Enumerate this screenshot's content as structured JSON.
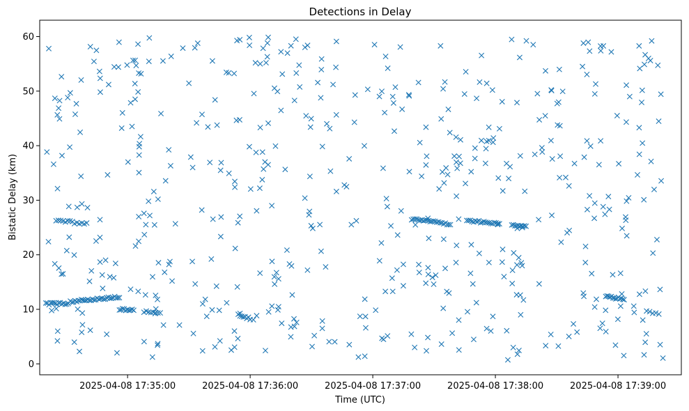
{
  "chart_data": {
    "type": "scatter",
    "title": "Detections in Delay",
    "xlabel": "Time (UTC)",
    "ylabel": "Bistatic Delay (km)",
    "marker": "x",
    "color": "#1f77b4",
    "grid": false,
    "legend": "none",
    "xlim": [
      "2025-04-08 17:34:17",
      "2025-04-08 17:39:31"
    ],
    "ylim": [
      -2,
      63
    ],
    "x_ticks": [
      "2025-04-08 17:35:00",
      "2025-04-08 17:36:00",
      "2025-04-08 17:37:00",
      "2025-04-08 17:38:00",
      "2025-04-08 17:39:00"
    ],
    "y_ticks": [
      0,
      10,
      20,
      30,
      40,
      50,
      60
    ],
    "tracks": [
      {
        "x_start": "2025-04-08 17:34:20",
        "x_end": "2025-04-08 17:34:31",
        "y_start": 11.0,
        "y_end": 11.1,
        "count": 15
      },
      {
        "x_start": "2025-04-08 17:34:32",
        "x_end": "2025-04-08 17:34:56",
        "y_start": 11.4,
        "y_end": 12.3,
        "count": 32
      },
      {
        "x_start": "2025-04-08 17:34:56",
        "x_end": "2025-04-08 17:35:03",
        "y_start": 10.0,
        "y_end": 9.8,
        "count": 10
      },
      {
        "x_start": "2025-04-08 17:35:08",
        "x_end": "2025-04-08 17:35:16",
        "y_start": 9.6,
        "y_end": 9.3,
        "count": 8
      },
      {
        "x_start": "2025-04-08 17:34:25",
        "x_end": "2025-04-08 17:34:33",
        "y_start": 26.3,
        "y_end": 26.1,
        "count": 8
      },
      {
        "x_start": "2025-04-08 17:34:34",
        "x_end": "2025-04-08 17:34:40",
        "y_start": 25.9,
        "y_end": 25.8,
        "count": 6
      },
      {
        "x_start": "2025-04-08 17:35:55",
        "x_end": "2025-04-08 17:36:00",
        "y_start": 8.6,
        "y_end": 8.3,
        "count": 7
      },
      {
        "x_start": "2025-04-08 17:37:19",
        "x_end": "2025-04-08 17:37:38",
        "y_start": 26.5,
        "y_end": 25.6,
        "count": 24
      },
      {
        "x_start": "2025-04-08 17:37:46",
        "x_end": "2025-04-08 17:38:02",
        "y_start": 26.3,
        "y_end": 25.6,
        "count": 20
      },
      {
        "x_start": "2025-04-08 17:38:08",
        "x_end": "2025-04-08 17:38:15",
        "y_start": 25.6,
        "y_end": 25.1,
        "count": 10
      },
      {
        "x_start": "2025-04-08 17:38:54",
        "x_end": "2025-04-08 17:39:03",
        "y_start": 12.3,
        "y_end": 11.9,
        "count": 14
      },
      {
        "x_start": "2025-04-08 17:39:14",
        "x_end": "2025-04-08 17:39:20",
        "y_start": 9.5,
        "y_end": 9.3,
        "count": 5
      }
    ],
    "clutter": {
      "x_range": [
        "2025-04-08 17:34:20",
        "2025-04-08 17:39:23"
      ],
      "y_range": [
        0.5,
        60
      ],
      "count": 560
    }
  }
}
